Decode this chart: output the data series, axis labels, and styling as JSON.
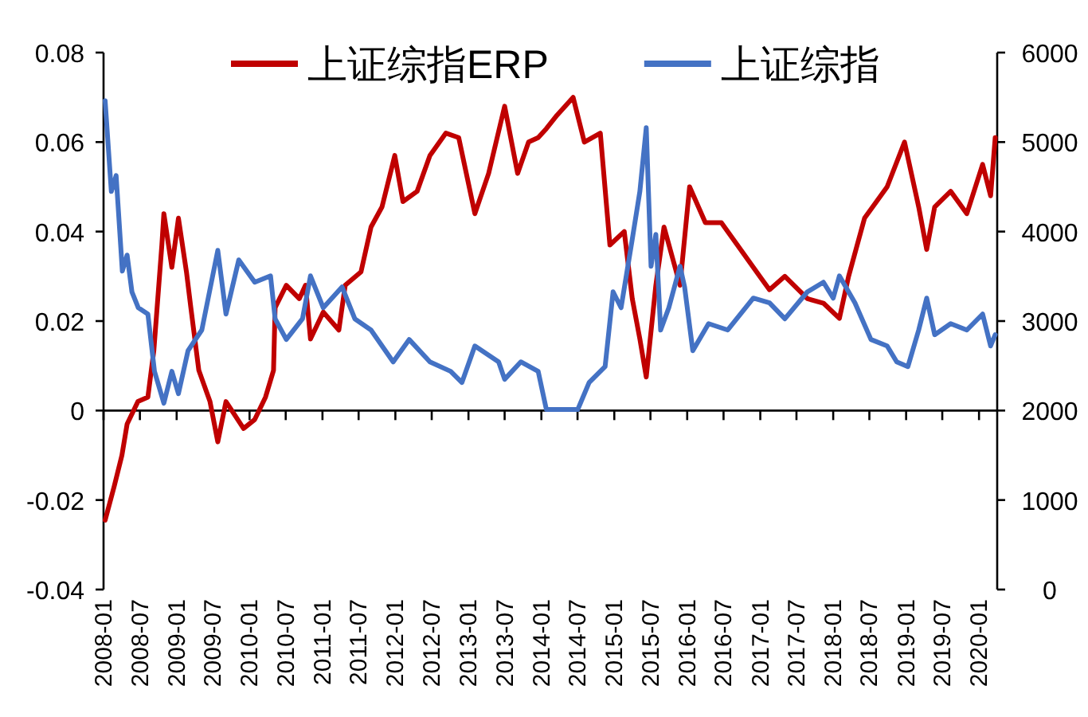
{
  "chart_data": {
    "type": "line",
    "legend": "top",
    "xlim": [
      "2008-01-01",
      "2020-04-01"
    ],
    "xticks": [
      "2008-01",
      "2008-07",
      "2009-01",
      "2009-07",
      "2010-01",
      "2010-07",
      "2011-01",
      "2011-07",
      "2012-01",
      "2012-07",
      "2013-01",
      "2013-07",
      "2014-01",
      "2014-07",
      "2015-01",
      "2015-07",
      "2016-01",
      "2016-07",
      "2017-01",
      "2017-07",
      "2018-01",
      "2018-07",
      "2019-01",
      "2019-07",
      "2020-01"
    ],
    "ylim": [
      -0.04,
      0.08
    ],
    "yticks": [
      -0.04,
      -0.02,
      0,
      0.02,
      0.04,
      0.06,
      0.08
    ],
    "y2lim": [
      0,
      6000
    ],
    "y2ticks": [
      0,
      1000,
      2000,
      3000,
      4000,
      5000,
      6000
    ],
    "series": [
      {
        "name": "上证综指ERP",
        "color": "#c00000",
        "x": [
          "2008-01-09",
          "2008-02-23",
          "2008-04-02",
          "2008-04-28",
          "2008-06-21",
          "2008-08-10",
          "2008-09-09",
          "2008-10-19",
          "2008-10-29",
          "2008-12-08",
          "2009-01-10",
          "2009-02-19",
          "2009-03-13",
          "2009-04-22",
          "2009-06-17",
          "2009-07-26",
          "2009-09-05",
          "2009-12-02",
          "2010-01-27",
          "2010-03-22",
          "2010-05-01",
          "2010-05-09",
          "2010-07-04",
          "2010-09-07",
          "2010-10-08",
          "2010-11-02",
          "2011-01-05",
          "2011-03-24",
          "2011-04-25",
          "2011-07-13",
          "2011-09-01",
          "2011-10-26",
          "2011-12-29",
          "2012-02-08",
          "2012-04-19",
          "2012-06-22",
          "2012-09-10",
          "2012-11-13",
          "2013-02-02",
          "2013-04-12",
          "2013-07-01",
          "2013-09-04",
          "2013-10-29",
          "2013-12-16",
          "2014-01-26",
          "2014-03-20",
          "2014-06-09",
          "2014-08-04",
          "2014-10-23",
          "2014-12-10",
          "2015-02-20",
          "2015-04-01",
          "2015-05-09",
          "2015-06-10",
          "2015-07-28",
          "2015-09-07",
          "2015-11-26",
          "2016-01-13",
          "2016-04-01",
          "2016-06-20",
          "2016-09-08",
          "2016-12-29",
          "2017-02-16",
          "2017-05-04",
          "2017-08-25",
          "2017-11-13",
          "2018-02-01",
          "2018-03-19",
          "2018-06-07",
          "2018-09-28",
          "2018-12-24",
          "2019-03-05",
          "2019-04-14",
          "2019-05-24",
          "2019-08-12",
          "2019-11-01",
          "2020-01-19",
          "2020-02-28",
          "2020-03-22"
        ],
        "values": [
          -0.0245,
          -0.017,
          -0.01,
          -0.003,
          0.002,
          0.003,
          0.0135,
          0.037,
          0.044,
          0.032,
          0.043,
          0.031,
          0.023,
          0.009,
          0.002,
          -0.007,
          0.002,
          -0.004,
          -0.002,
          0.003,
          0.009,
          0.023,
          0.028,
          0.025,
          0.028,
          0.016,
          0.022,
          0.018,
          0.028,
          0.031,
          0.041,
          0.0455,
          0.057,
          0.0467,
          0.049,
          0.057,
          0.062,
          0.061,
          0.044,
          0.053,
          0.068,
          0.053,
          0.06,
          0.061,
          0.063,
          0.066,
          0.07,
          0.06,
          0.062,
          0.037,
          0.04,
          0.025,
          0.016,
          0.0075,
          0.028,
          0.041,
          0.028,
          0.05,
          0.042,
          0.042,
          0.037,
          0.03,
          0.027,
          0.03,
          0.025,
          0.024,
          0.0206,
          0.03,
          0.043,
          0.05,
          0.06,
          0.0455,
          0.036,
          0.0455,
          0.049,
          0.044,
          0.055,
          0.048,
          0.061
        ]
      },
      {
        "name": "上证综指",
        "color": "#4472c4",
        "axis": "y2",
        "x": [
          "2008-01-09",
          "2008-02-09",
          "2008-03-04",
          "2008-04-04",
          "2008-04-28",
          "2008-05-22",
          "2008-06-23",
          "2008-08-10",
          "2008-09-12",
          "2008-10-29",
          "2008-12-08",
          "2009-01-10",
          "2009-02-27",
          "2009-05-07",
          "2009-07-26",
          "2009-09-05",
          "2009-11-08",
          "2010-01-27",
          "2010-04-16",
          "2010-05-09",
          "2010-07-04",
          "2010-09-23",
          "2010-11-02",
          "2011-01-05",
          "2011-04-09",
          "2011-06-12",
          "2011-09-01",
          "2011-12-21",
          "2012-03-10",
          "2012-06-22",
          "2012-10-04",
          "2012-11-29",
          "2013-02-02",
          "2013-06-01",
          "2013-07-01",
          "2013-09-20",
          "2013-12-16",
          "2014-01-26",
          "2014-07-02",
          "2014-08-28",
          "2014-11-16",
          "2014-12-26",
          "2015-02-04",
          "2015-04-01",
          "2015-05-09",
          "2015-06-10",
          "2015-07-04",
          "2015-07-28",
          "2015-08-21",
          "2015-10-01",
          "2015-11-26",
          "2015-12-19",
          "2016-01-29",
          "2016-04-17",
          "2016-07-22",
          "2016-11-27",
          "2017-02-16",
          "2017-05-04",
          "2017-08-25",
          "2017-11-13",
          "2018-01-01",
          "2018-02-01",
          "2018-04-20",
          "2018-07-09",
          "2018-09-28",
          "2018-11-15",
          "2019-01-10",
          "2019-03-05",
          "2019-04-14",
          "2019-05-24",
          "2019-08-12",
          "2019-11-01",
          "2020-01-19",
          "2020-02-28",
          "2020-03-22"
        ],
        "values": [
          5462,
          4448,
          4626,
          3559,
          3737,
          3327,
          3149,
          3078,
          2438,
          2082,
          2438,
          2189,
          2669,
          2900,
          3790,
          3078,
          3683,
          3434,
          3505,
          3025,
          2794,
          3025,
          3505,
          3149,
          3381,
          3025,
          2900,
          2544,
          2794,
          2544,
          2438,
          2313,
          2722,
          2544,
          2349,
          2544,
          2438,
          2011,
          2011,
          2313,
          2491,
          3327,
          3149,
          3915,
          4448,
          5160,
          3612,
          3968,
          2900,
          3149,
          3612,
          3381,
          2669,
          2971,
          2900,
          3256,
          3203,
          3025,
          3327,
          3434,
          3256,
          3505,
          3203,
          2794,
          2722,
          2544,
          2491,
          2900,
          3256,
          2847,
          2971,
          2900,
          3078,
          2722,
          2847
        ]
      }
    ]
  }
}
